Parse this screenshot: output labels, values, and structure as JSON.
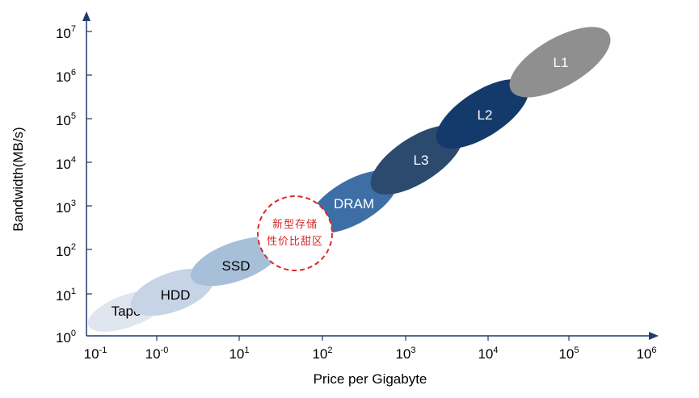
{
  "chart_data": {
    "type": "diagram",
    "xlabel": "Price per Gigabyte",
    "ylabel": "Bandwidth(MB/s)",
    "x_ticks": [
      {
        "base": "10",
        "exp": "-1"
      },
      {
        "base": "10",
        "exp": "-0"
      },
      {
        "base": "10",
        "exp": "1"
      },
      {
        "base": "10",
        "exp": "2"
      },
      {
        "base": "10",
        "exp": "3"
      },
      {
        "base": "10",
        "exp": "4"
      },
      {
        "base": "10",
        "exp": "5"
      },
      {
        "base": "10",
        "exp": "6"
      }
    ],
    "y_ticks": [
      {
        "base": "10",
        "exp": "0"
      },
      {
        "base": "10",
        "exp": "1"
      },
      {
        "base": "10",
        "exp": "2"
      },
      {
        "base": "10",
        "exp": "3"
      },
      {
        "base": "10",
        "exp": "4"
      },
      {
        "base": "10",
        "exp": "5"
      },
      {
        "base": "10",
        "exp": "6"
      },
      {
        "base": "10",
        "exp": "7"
      }
    ],
    "tiers": [
      {
        "label": "Tape",
        "color": "#dfe6f0",
        "text_color": "#000000"
      },
      {
        "label": "HDD",
        "color": "#c6d4e6",
        "text_color": "#000000"
      },
      {
        "label": "SSD",
        "color": "#a7bfd9",
        "text_color": "#000000"
      },
      {
        "label": "DRAM",
        "color": "#3d6fa6",
        "text_color": "#ffffff"
      },
      {
        "label": "L3",
        "color": "#2b4a6e",
        "text_color": "#ffffff"
      },
      {
        "label": "L2",
        "color": "#143a6b",
        "text_color": "#ffffff"
      },
      {
        "label": "L1",
        "color": "#8f8f8f",
        "text_color": "#ffffff"
      }
    ],
    "highlight_zone": {
      "lines": [
        "新型存储",
        "性价比甜区"
      ],
      "color": "#d62a2a"
    },
    "axis_color": "#1f3a6b"
  }
}
